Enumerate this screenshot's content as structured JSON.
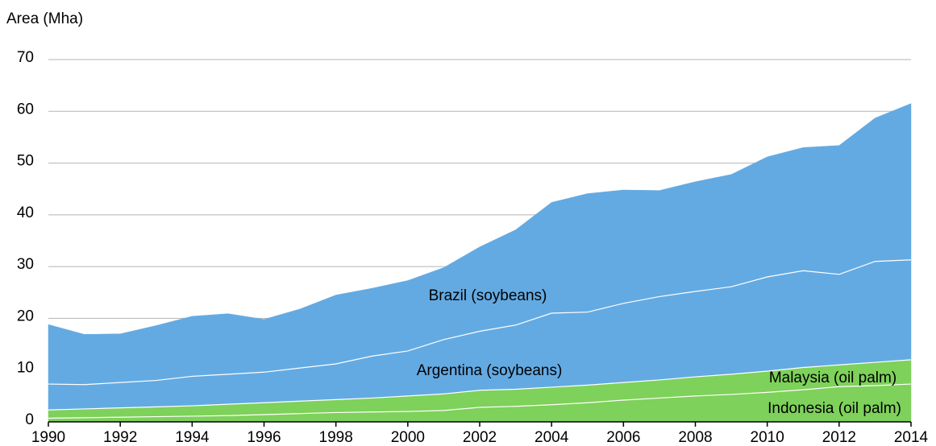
{
  "chart_data": {
    "type": "stacked-area",
    "y_label": "Area (Mha)",
    "x": [
      1990,
      1991,
      1992,
      1993,
      1994,
      1995,
      1996,
      1997,
      1998,
      1999,
      2000,
      2001,
      2002,
      2003,
      2004,
      2005,
      2006,
      2007,
      2008,
      2009,
      2010,
      2011,
      2012,
      2013,
      2014
    ],
    "series": [
      {
        "name": "Indonesia (oil palm)",
        "color": "#7ed15a",
        "values": [
          0.7,
          0.8,
          0.9,
          1.0,
          1.1,
          1.2,
          1.4,
          1.6,
          1.8,
          1.9,
          2.0,
          2.2,
          2.8,
          3.0,
          3.3,
          3.7,
          4.2,
          4.6,
          5.0,
          5.3,
          5.7,
          6.2,
          6.8,
          7.0,
          7.3
        ]
      },
      {
        "name": "Malaysia (oil palm)",
        "color": "#7ed15a",
        "values": [
          1.6,
          1.7,
          1.8,
          1.9,
          2.0,
          2.2,
          2.3,
          2.4,
          2.5,
          2.7,
          3.0,
          3.2,
          3.3,
          3.3,
          3.4,
          3.4,
          3.4,
          3.5,
          3.7,
          3.9,
          4.1,
          4.3,
          4.2,
          4.5,
          4.7
        ]
      },
      {
        "name": "Argentina (soybeans)",
        "color": "#64aae2",
        "values": [
          5.0,
          4.7,
          4.9,
          5.1,
          5.7,
          5.8,
          5.9,
          6.4,
          6.9,
          8.1,
          8.7,
          10.5,
          11.4,
          12.4,
          14.3,
          14.1,
          15.3,
          16.1,
          16.5,
          16.9,
          18.2,
          18.7,
          17.5,
          19.5,
          19.3
        ]
      },
      {
        "name": "Brazil (soybeans)",
        "color": "#64aae2",
        "values": [
          11.5,
          9.7,
          9.4,
          10.6,
          11.6,
          11.7,
          10.2,
          11.4,
          13.3,
          13.1,
          13.6,
          13.9,
          16.3,
          18.4,
          21.4,
          22.9,
          21.9,
          20.5,
          21.2,
          21.7,
          23.2,
          23.8,
          24.9,
          27.7,
          30.2
        ]
      }
    ],
    "xlim": [
      1990,
      2014
    ],
    "xticks": [
      1990,
      1992,
      1994,
      1996,
      1998,
      2000,
      2002,
      2004,
      2006,
      2008,
      2010,
      2012,
      2014
    ],
    "ylim": [
      0,
      70
    ],
    "yticks": [
      0,
      10,
      20,
      30,
      40,
      50,
      60,
      70
    ],
    "grid": true
  }
}
